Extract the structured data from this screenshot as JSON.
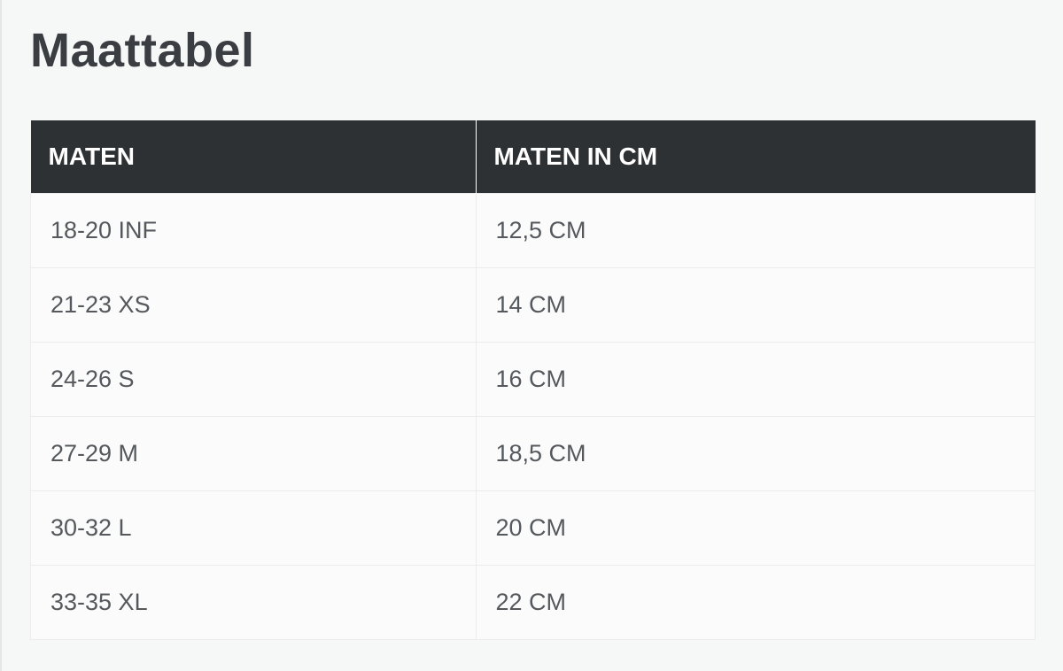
{
  "title": "Maattabel",
  "table": {
    "headers": [
      "MATEN",
      "MATEN IN CM"
    ],
    "rows": [
      [
        "18-20 INF",
        "12,5 CM"
      ],
      [
        "21-23 XS",
        "14 CM"
      ],
      [
        "24-26 S",
        "16 CM"
      ],
      [
        "27-29 M",
        "18,5 CM"
      ],
      [
        "30-32 L",
        "20 CM"
      ],
      [
        "33-35 XL",
        "22 CM"
      ]
    ]
  },
  "colors": {
    "header_bg": "#2e3134",
    "header_text": "#ffffff",
    "text": "#55585c"
  }
}
